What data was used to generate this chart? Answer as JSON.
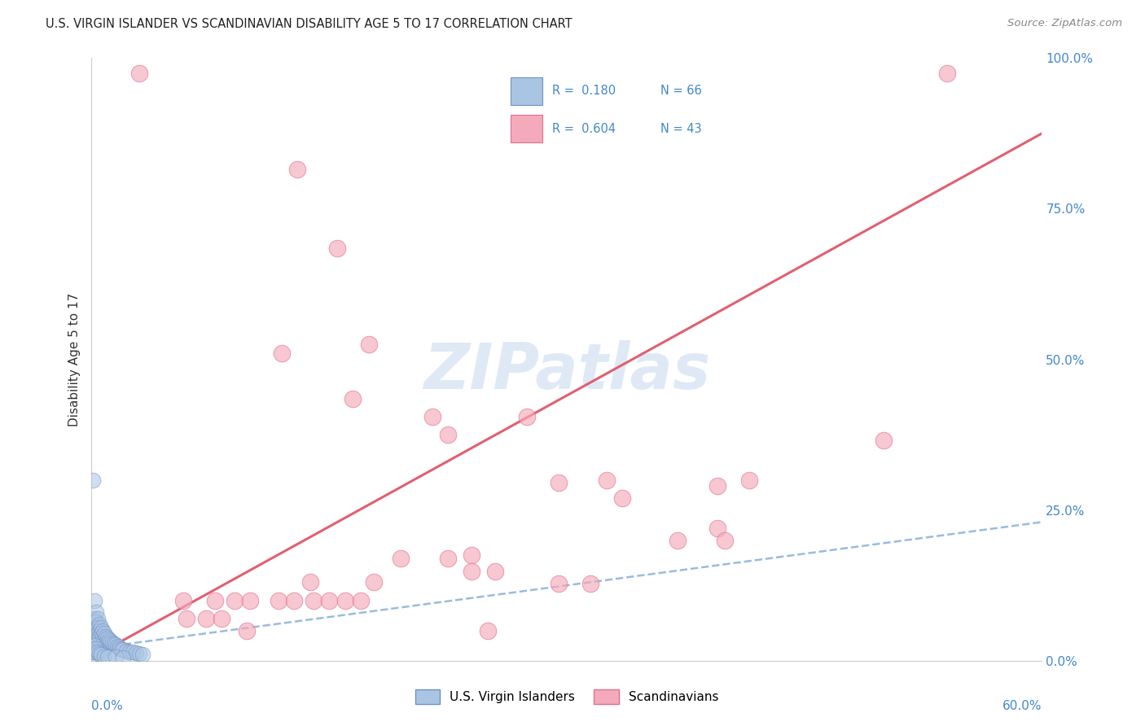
{
  "title": "U.S. VIRGIN ISLANDER VS SCANDINAVIAN DISABILITY AGE 5 TO 17 CORRELATION CHART",
  "source": "Source: ZipAtlas.com",
  "ylabel": "Disability Age 5 to 17",
  "xlim": [
    0,
    0.6
  ],
  "ylim": [
    0,
    1.0
  ],
  "ytick_labels": [
    "0.0%",
    "25.0%",
    "50.0%",
    "75.0%",
    "100.0%"
  ],
  "ytick_values": [
    0,
    0.25,
    0.5,
    0.75,
    1.0
  ],
  "blue_color": "#aac4e4",
  "pink_color": "#f4aabb",
  "blue_edge_color": "#7090c0",
  "pink_edge_color": "#e07090",
  "blue_line_color": "#99bbe0",
  "pink_line_color": "#e06070",
  "watermark": "ZIPatlas",
  "background_color": "#ffffff",
  "grid_color": "#d8d8e8",
  "axis_label_color": "#4488cc",
  "legend_text_color": "#4488cc",
  "blue_scatter": [
    [
      0.001,
      0.3
    ],
    [
      0.002,
      0.1
    ],
    [
      0.002,
      0.07
    ],
    [
      0.002,
      0.05
    ],
    [
      0.002,
      0.04
    ],
    [
      0.003,
      0.08
    ],
    [
      0.003,
      0.065
    ],
    [
      0.003,
      0.055
    ],
    [
      0.003,
      0.045
    ],
    [
      0.004,
      0.07
    ],
    [
      0.004,
      0.055
    ],
    [
      0.004,
      0.045
    ],
    [
      0.004,
      0.035
    ],
    [
      0.005,
      0.06
    ],
    [
      0.005,
      0.05
    ],
    [
      0.005,
      0.04
    ],
    [
      0.006,
      0.055
    ],
    [
      0.006,
      0.045
    ],
    [
      0.007,
      0.05
    ],
    [
      0.007,
      0.04
    ],
    [
      0.008,
      0.045
    ],
    [
      0.008,
      0.035
    ],
    [
      0.009,
      0.04
    ],
    [
      0.009,
      0.03
    ],
    [
      0.01,
      0.038
    ],
    [
      0.01,
      0.028
    ],
    [
      0.011,
      0.035
    ],
    [
      0.012,
      0.032
    ],
    [
      0.013,
      0.03
    ],
    [
      0.014,
      0.028
    ],
    [
      0.015,
      0.026
    ],
    [
      0.016,
      0.024
    ],
    [
      0.017,
      0.022
    ],
    [
      0.018,
      0.02
    ],
    [
      0.019,
      0.019
    ],
    [
      0.02,
      0.018
    ],
    [
      0.022,
      0.016
    ],
    [
      0.024,
      0.015
    ],
    [
      0.026,
      0.014
    ],
    [
      0.028,
      0.013
    ],
    [
      0.03,
      0.012
    ],
    [
      0.032,
      0.011
    ],
    [
      0.001,
      0.02
    ],
    [
      0.001,
      0.015
    ],
    [
      0.001,
      0.01
    ],
    [
      0.002,
      0.025
    ],
    [
      0.002,
      0.015
    ],
    [
      0.003,
      0.02
    ],
    [
      0.004,
      0.015
    ],
    [
      0.005,
      0.012
    ],
    [
      0.006,
      0.01
    ],
    [
      0.008,
      0.008
    ],
    [
      0.01,
      0.007
    ],
    [
      0.015,
      0.006
    ],
    [
      0.02,
      0.005
    ]
  ],
  "pink_scatter": [
    [
      0.03,
      0.975
    ],
    [
      0.54,
      0.975
    ],
    [
      0.13,
      0.815
    ],
    [
      0.155,
      0.685
    ],
    [
      0.12,
      0.51
    ],
    [
      0.175,
      0.525
    ],
    [
      0.165,
      0.435
    ],
    [
      0.215,
      0.405
    ],
    [
      0.275,
      0.405
    ],
    [
      0.225,
      0.375
    ],
    [
      0.5,
      0.365
    ],
    [
      0.295,
      0.295
    ],
    [
      0.325,
      0.3
    ],
    [
      0.335,
      0.27
    ],
    [
      0.395,
      0.29
    ],
    [
      0.415,
      0.3
    ],
    [
      0.395,
      0.22
    ],
    [
      0.37,
      0.2
    ],
    [
      0.4,
      0.2
    ],
    [
      0.195,
      0.17
    ],
    [
      0.225,
      0.17
    ],
    [
      0.24,
      0.175
    ],
    [
      0.24,
      0.148
    ],
    [
      0.255,
      0.148
    ],
    [
      0.138,
      0.13
    ],
    [
      0.178,
      0.13
    ],
    [
      0.295,
      0.128
    ],
    [
      0.315,
      0.128
    ],
    [
      0.058,
      0.1
    ],
    [
      0.078,
      0.1
    ],
    [
      0.09,
      0.1
    ],
    [
      0.1,
      0.1
    ],
    [
      0.118,
      0.1
    ],
    [
      0.128,
      0.1
    ],
    [
      0.14,
      0.1
    ],
    [
      0.15,
      0.1
    ],
    [
      0.16,
      0.1
    ],
    [
      0.17,
      0.1
    ],
    [
      0.06,
      0.07
    ],
    [
      0.072,
      0.07
    ],
    [
      0.082,
      0.07
    ],
    [
      0.098,
      0.05
    ],
    [
      0.25,
      0.05
    ]
  ],
  "blue_trendline": [
    0.0,
    0.02,
    0.6,
    0.23
  ],
  "pink_trendline": [
    0.0,
    0.005,
    0.6,
    0.875
  ]
}
